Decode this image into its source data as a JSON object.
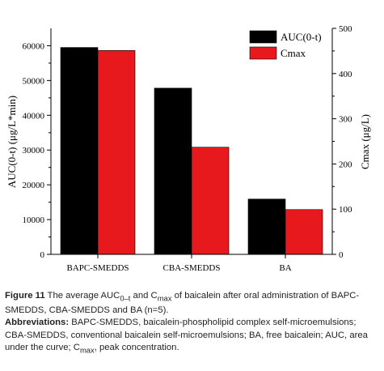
{
  "chart_data": {
    "type": "bar",
    "categories": [
      "BAPC-SMEDDS",
      "CBA-SMEDDS",
      "BA"
    ],
    "series": [
      {
        "name": "AUC(0-t)",
        "values": [
          59500,
          47800,
          15900
        ],
        "color": "#000000",
        "axis": "left"
      },
      {
        "name": "Cmax",
        "values": [
          451,
          237,
          99
        ],
        "color": "#e8191d",
        "axis": "right"
      }
    ],
    "ylabel": "AUC(0-t) (μg/L*min)",
    "ylabel_right": "Cmax (μg/L)",
    "ylim": [
      0,
      65000
    ],
    "ylim_right": [
      0,
      500
    ],
    "yticks": [
      0,
      10000,
      20000,
      30000,
      40000,
      50000,
      60000
    ],
    "yticks_right": [
      0,
      100,
      200,
      300,
      400,
      500
    ],
    "legend_position": "top-right",
    "grid": false
  },
  "caption": {
    "figure_label": "Figure 11",
    "title_text_1": " The average AUC",
    "title_sub_1": "0–t",
    "title_text_2": " and C",
    "title_sub_2": "max",
    "title_text_3": " of baicalein after oral administration of BAPC-SMEDDS, CBA-SMEDDS and BA (n=5).",
    "abbr_label": "Abbreviations:",
    "abbr_text_1": " BAPC-SMEDDS, baicalein-phospholipid complex self-microemulsions; CBA-SMEDDS, conventional baicalein self-microemulsions; BA, free baicalein; AUC, area under the curve; C",
    "abbr_sub": "max",
    "abbr_text_2": ", peak concentration."
  }
}
